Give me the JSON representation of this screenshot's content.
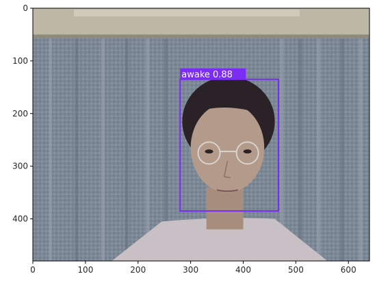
{
  "chart_data": {
    "type": "image-with-detection",
    "title": "",
    "xlabel": "",
    "ylabel": "",
    "xlim": [
      0,
      640
    ],
    "ylim": [
      480,
      0
    ],
    "xticks": [
      0,
      100,
      200,
      300,
      400,
      500,
      600
    ],
    "yticks": [
      0,
      100,
      200,
      300,
      400
    ],
    "detections": [
      {
        "label": "awake",
        "score": "0.88",
        "text": "awake 0.88",
        "x0": 280,
        "y0": 135,
        "x1": 467,
        "y1": 385,
        "color": "#7b2cf5"
      }
    ]
  },
  "scene": {
    "wall_color": "#bdb8a6",
    "curtain_color": "#7e8a98",
    "skin_color": "#b39a8a",
    "hair_color": "#2a2226",
    "shirt_color": "#c8c0c4"
  }
}
